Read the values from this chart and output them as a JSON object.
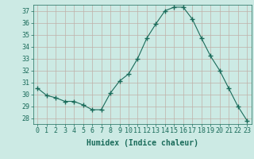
{
  "x": [
    0,
    1,
    2,
    3,
    4,
    5,
    6,
    7,
    8,
    9,
    10,
    11,
    12,
    13,
    14,
    15,
    16,
    17,
    18,
    19,
    20,
    21,
    22,
    23
  ],
  "y": [
    30.5,
    29.9,
    29.7,
    29.4,
    29.4,
    29.1,
    28.7,
    28.7,
    30.1,
    31.1,
    31.7,
    33.0,
    34.7,
    35.9,
    37.0,
    37.3,
    37.3,
    36.3,
    34.7,
    33.2,
    32.0,
    30.5,
    29.0,
    27.8
  ],
  "line_color": "#1a6b5a",
  "marker": "+",
  "marker_size": 4,
  "bg_color": "#cceae4",
  "grid_color": "#c0b0a8",
  "xlabel": "Humidex (Indice chaleur)",
  "xlim": [
    -0.5,
    23.5
  ],
  "ylim": [
    27.5,
    37.5
  ],
  "yticks": [
    28,
    29,
    30,
    31,
    32,
    33,
    34,
    35,
    36,
    37
  ],
  "xticks": [
    0,
    1,
    2,
    3,
    4,
    5,
    6,
    7,
    8,
    9,
    10,
    11,
    12,
    13,
    14,
    15,
    16,
    17,
    18,
    19,
    20,
    21,
    22,
    23
  ],
  "tick_color": "#1a6b5a",
  "label_fontsize": 7,
  "tick_fontsize": 6
}
